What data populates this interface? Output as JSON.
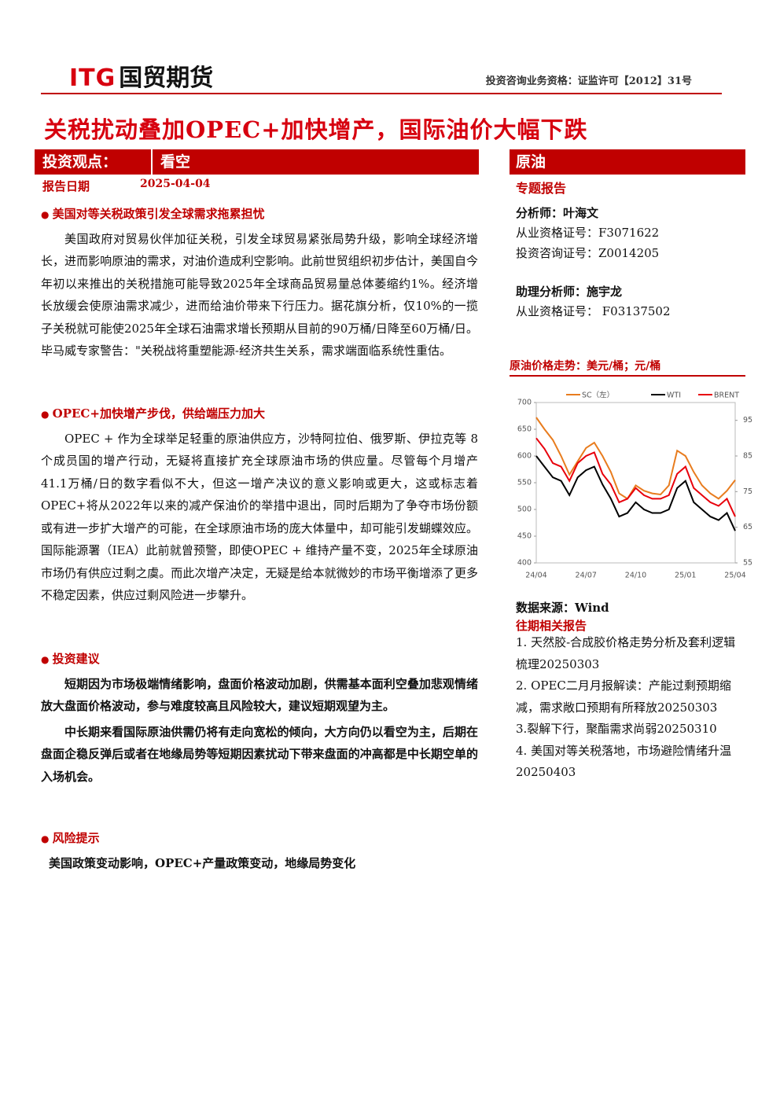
{
  "header": {
    "logo_itg": "ITG",
    "logo_cn": "国贸期货",
    "qualification": "投资咨询业务资格：证监许可【2012】31号"
  },
  "title": "关税扰动叠加OPEC+加快增产，国际油价大幅下跌",
  "view_label": "投资观点：",
  "view_value": "看空",
  "sector": "原油",
  "date_label": "报告日期",
  "date_value": "2025-04-04",
  "report_type": "专题报告",
  "sections": [
    {
      "heading": "美国对等关税政策引发全球需求拖累担忧",
      "paragraphs": [
        "美国政府对贸易伙伴加征关税，引发全球贸易紧张局势升级，影响全球经济增长，进而影响原油的需求，对油价造成利空影响。此前世贸组织初步估计，美国自今年初以来推出的关税措施可能导致2025年全球商品贸易量总体萎缩约1%。经济增长放缓会使原油需求减少，进而给油价带来下行压力。据花旗分析，仅10%的一揽子关税就可能使2025年全球石油需求增长预期从目前的90万桶/日降至60万桶/日。毕马威专家警告：\"关税战将重塑能源-经济共生关系，需求端面临系统性重估。"
      ]
    },
    {
      "heading": "OPEC+加快增产步伐，供给端压力加大",
      "paragraphs": [
        "OPEC + 作为全球举足轻重的原油供应方，沙特阿拉伯、俄罗斯、伊拉克等 8 个成员国的增产行动，无疑将直接扩充全球原油市场的供应量。尽管每个月增产41.1万桶/日的数字看似不大，但这一增产决议的意义影响或更大，这或标志着OPEC+将从2022年以来的减产保油价的举措中退出，同时后期为了争夺市场份额或有进一步扩大增产的可能，在全球原油市场的庞大体量中，却可能引发蝴蝶效应。国际能源署（IEA）此前就曾预警，即使OPEC + 维持产量不变，2025年全球原油市场仍有供应过剩之虞。而此次增产决定，无疑是给本就微妙的市场平衡增添了更多不稳定因素，供应过剩风险进一步攀升。"
      ]
    },
    {
      "heading": "投资建议",
      "paragraphs": [
        "短期因为市场极端情绪影响，盘面价格波动加剧，供需基本面利空叠加悲观情绪放大盘面价格波动，参与难度较高且风险较大，建议短期观望为主。",
        "中长期来看国际原油供需仍将有走向宽松的倾向，大方向仍以看空为主，后期在盘面企稳反弹后或者在地缘局势等短期因素扰动下带来盘面的冲高都是中长期空单的入场机会。"
      ]
    },
    {
      "heading": "风险提示",
      "paragraphs": [
        "美国政策变动影响，OPEC+产量政策变动，地缘局势变化"
      ]
    }
  ],
  "analysts": [
    "分析师：叶海文",
    "从业资格证号：F3071622",
    "投资咨询证号：Z0014205",
    "助理分析师：施宇龙",
    "从业资格证号： F03137502"
  ],
  "chart_data": {
    "type": "line",
    "title": "原油价格走势：美元/桶；元/桶",
    "categories": [
      "24/04",
      null,
      null,
      null,
      null,
      null,
      "24/07",
      null,
      null,
      null,
      null,
      null,
      "24/10",
      null,
      null,
      null,
      null,
      null,
      "25/01",
      null,
      null,
      null,
      null,
      null,
      "25/04"
    ],
    "series": [
      {
        "name": "SC（左）",
        "color": "#e87c1e",
        "values": [
          672,
          650,
          630,
          600,
          565,
          590,
          615,
          625,
          600,
          570,
          530,
          520,
          545,
          535,
          530,
          528,
          545,
          610,
          600,
          570,
          545,
          530,
          520,
          535,
          555
        ]
      },
      {
        "name": "WTI",
        "color": "#000000",
        "axis": "y2",
        "values": [
          85,
          82,
          79,
          78,
          74,
          79,
          81,
          82,
          77,
          73,
          68,
          69,
          72,
          70,
          69,
          69,
          70,
          76,
          78,
          72,
          70,
          68,
          67,
          69,
          64
        ]
      },
      {
        "name": "BRENT",
        "color": "#e8000b",
        "axis": "y2",
        "values": [
          90,
          87,
          83,
          82,
          78,
          83,
          85,
          86,
          80,
          77,
          72,
          73,
          76,
          74,
          73,
          73,
          74,
          80,
          82,
          76,
          74,
          72,
          71,
          73,
          68
        ]
      }
    ],
    "ylim": [
      400,
      700
    ],
    "yticks": [
      400,
      450,
      500,
      550,
      600,
      650,
      700
    ],
    "y2lim": [
      55,
      100
    ],
    "y2ticks": [
      55,
      65,
      75,
      85,
      95
    ]
  },
  "data_source": "数据来源：Wind",
  "related": {
    "title": "往期相关报告",
    "items": [
      "1. 天然胶-合成胶价格走势分析及套利逻辑梳理20250303",
      "2. OPEC二月月报解读：产能过剩预期缩减，需求敞口预期有所释放20250303",
      "3.裂解下行，聚酯需求尚弱20250310",
      "4. 美国对等关税落地，市场避险情绪升温20250403"
    ]
  }
}
